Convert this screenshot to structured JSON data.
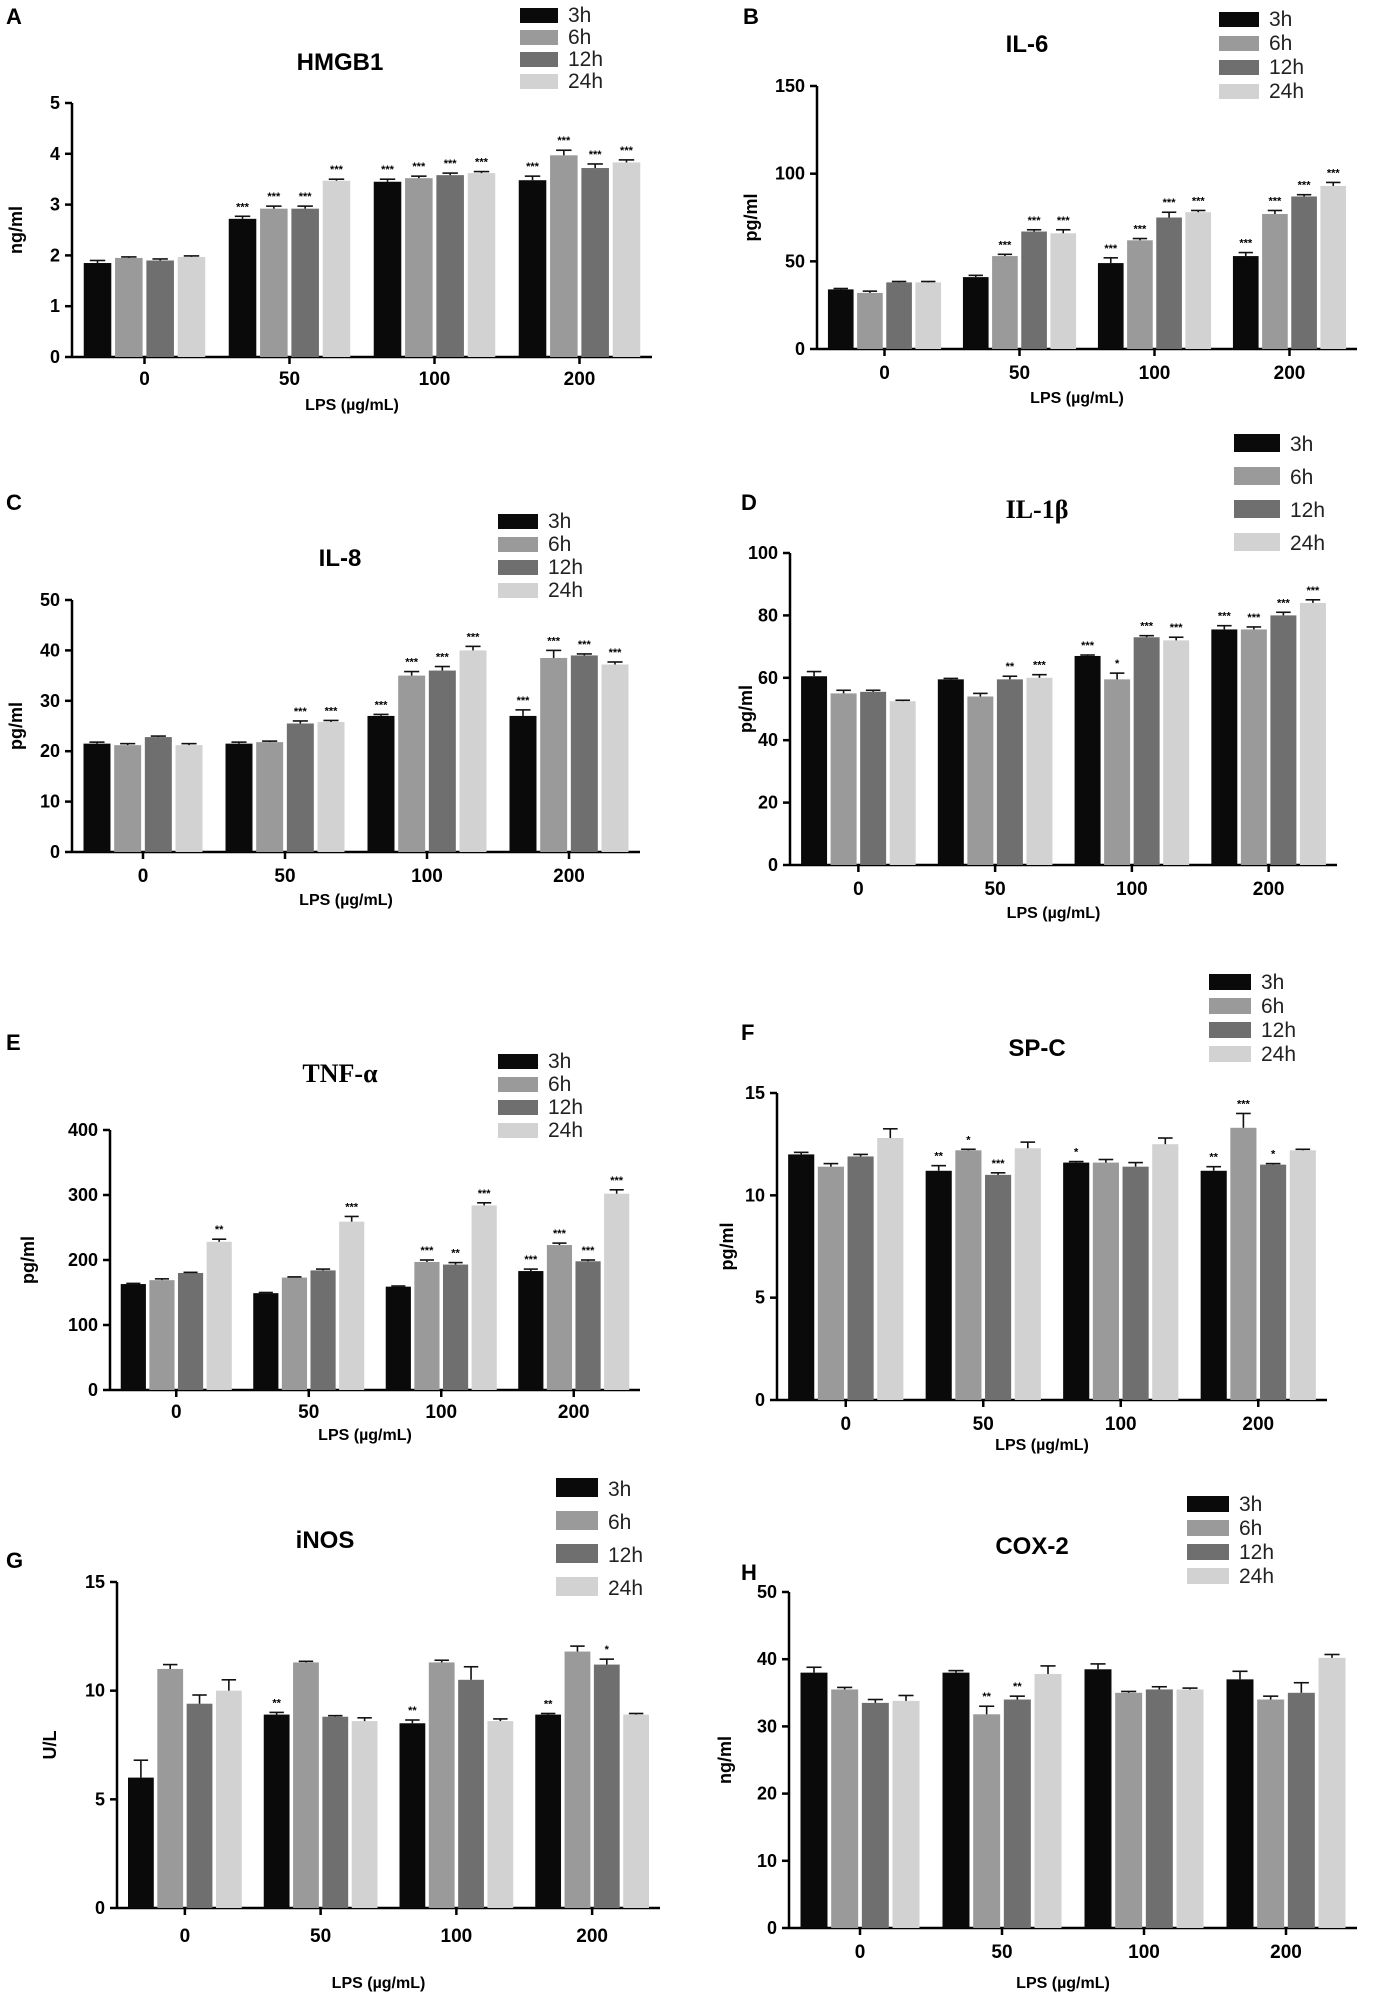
{
  "colors": {
    "3h": "#0a0a0a",
    "6h": "#9a9a9a",
    "12h": "#6f6f6f",
    "24h": "#d2d2d2",
    "axis": "#000000"
  },
  "chart_data": [
    {
      "panel": "A",
      "type": "bar",
      "title": "HMGB1",
      "ylabel": "ng/ml",
      "xlabel": "LPS (µg/mL)",
      "ylim": [
        0,
        5
      ],
      "yticks": [
        0,
        1,
        2,
        3,
        4,
        5
      ],
      "categories": [
        "0",
        "50",
        "100",
        "200"
      ],
      "legend": [
        "3h",
        "6h",
        "12h",
        "24h"
      ],
      "series": [
        {
          "name": "3h",
          "values": [
            1.85,
            2.72,
            3.45,
            3.48
          ],
          "errors": [
            0.05,
            0.05,
            0.05,
            0.08
          ],
          "sig": [
            "",
            "***",
            "***",
            "***"
          ]
        },
        {
          "name": "6h",
          "values": [
            1.95,
            2.92,
            3.52,
            3.97
          ],
          "errors": [
            0.02,
            0.05,
            0.04,
            0.1
          ],
          "sig": [
            "",
            "***",
            "***",
            "***"
          ]
        },
        {
          "name": "12h",
          "values": [
            1.9,
            2.92,
            3.58,
            3.72
          ],
          "errors": [
            0.03,
            0.05,
            0.04,
            0.08
          ],
          "sig": [
            "",
            "***",
            "***",
            "***"
          ]
        },
        {
          "name": "24h",
          "values": [
            1.97,
            3.47,
            3.62,
            3.83
          ],
          "errors": [
            0.02,
            0.03,
            0.03,
            0.05
          ],
          "sig": [
            "",
            "***",
            "***",
            "***"
          ]
        }
      ]
    },
    {
      "panel": "B",
      "type": "bar",
      "title": "IL-6",
      "ylabel": "pg/ml",
      "xlabel": "LPS (µg/mL)",
      "ylim": [
        0,
        150
      ],
      "yticks": [
        0,
        50,
        100,
        150
      ],
      "categories": [
        "0",
        "50",
        "100",
        "200"
      ],
      "legend": [
        "3h",
        "6h",
        "12h",
        "24h"
      ],
      "series": [
        {
          "name": "3h",
          "values": [
            34,
            41,
            49,
            53
          ],
          "errors": [
            0.5,
            1,
            3,
            2
          ],
          "sig": [
            "",
            "",
            "***",
            "***"
          ]
        },
        {
          "name": "6h",
          "values": [
            32,
            53,
            62,
            77
          ],
          "errors": [
            1,
            1,
            1,
            2
          ],
          "sig": [
            "",
            "***",
            "***",
            "***"
          ]
        },
        {
          "name": "12h",
          "values": [
            38,
            67,
            75,
            87
          ],
          "errors": [
            0.5,
            1,
            3,
            1
          ],
          "sig": [
            "",
            "***",
            "***",
            "***"
          ]
        },
        {
          "name": "24h",
          "values": [
            38,
            66,
            78,
            93
          ],
          "errors": [
            0.5,
            2,
            1,
            2
          ],
          "sig": [
            "",
            "***",
            "***",
            "***"
          ]
        }
      ]
    },
    {
      "panel": "C",
      "type": "bar",
      "title": "IL-8",
      "ylabel": "pg/ml",
      "xlabel": "LPS (µg/mL)",
      "ylim": [
        0,
        50
      ],
      "yticks": [
        0,
        10,
        20,
        30,
        40,
        50
      ],
      "categories": [
        "0",
        "50",
        "100",
        "200"
      ],
      "legend": [
        "3h",
        "6h",
        "12h",
        "24h"
      ],
      "series": [
        {
          "name": "3h",
          "values": [
            21.5,
            21.5,
            27,
            27
          ],
          "errors": [
            0.3,
            0.3,
            0.3,
            1.2
          ],
          "sig": [
            "",
            "",
            "***",
            "***"
          ]
        },
        {
          "name": "6h",
          "values": [
            21.2,
            21.8,
            35,
            38.5
          ],
          "errors": [
            0.3,
            0.2,
            0.8,
            1.5
          ],
          "sig": [
            "",
            "",
            "***",
            "***"
          ]
        },
        {
          "name": "12h",
          "values": [
            22.8,
            25.5,
            36,
            39
          ],
          "errors": [
            0.2,
            0.5,
            0.8,
            0.3
          ],
          "sig": [
            "",
            "***",
            "***",
            "***"
          ]
        },
        {
          "name": "24h",
          "values": [
            21.2,
            25.8,
            40,
            37.2
          ],
          "errors": [
            0.3,
            0.3,
            0.8,
            0.5
          ],
          "sig": [
            "",
            "***",
            "***",
            "***"
          ]
        }
      ]
    },
    {
      "panel": "D",
      "type": "bar",
      "title": "IL-1β",
      "ylabel": "pg/ml",
      "xlabel": "LPS (µg/mL)",
      "ylim": [
        0,
        100
      ],
      "yticks": [
        0,
        20,
        40,
        60,
        80,
        100
      ],
      "categories": [
        "0",
        "50",
        "100",
        "200"
      ],
      "legend": [
        "3h",
        "6h",
        "12h",
        "24h"
      ],
      "series": [
        {
          "name": "3h",
          "values": [
            60.5,
            59.5,
            67,
            75.5
          ],
          "errors": [
            1.5,
            0.3,
            0.3,
            1.2
          ],
          "sig": [
            "",
            "",
            "***",
            "***"
          ]
        },
        {
          "name": "6h",
          "values": [
            55,
            54,
            59.5,
            75.5
          ],
          "errors": [
            1,
            1,
            2,
            0.8
          ],
          "sig": [
            "",
            "",
            "*",
            "***"
          ]
        },
        {
          "name": "12h",
          "values": [
            55.5,
            59.5,
            73,
            80
          ],
          "errors": [
            0.5,
            1,
            0.5,
            1
          ],
          "sig": [
            "",
            "**",
            "***",
            "***"
          ]
        },
        {
          "name": "24h",
          "values": [
            52.5,
            60,
            72,
            84
          ],
          "errors": [
            0.3,
            1,
            1,
            1
          ],
          "sig": [
            "",
            "***",
            "***",
            "***"
          ]
        }
      ]
    },
    {
      "panel": "E",
      "type": "bar",
      "title": "TNF-α",
      "ylabel": "pg/ml",
      "xlabel": "LPS (µg/mL)",
      "ylim": [
        0,
        400
      ],
      "yticks": [
        0,
        100,
        200,
        300,
        400
      ],
      "categories": [
        "0",
        "50",
        "100",
        "200"
      ],
      "legend": [
        "3h",
        "6h",
        "12h",
        "24h"
      ],
      "series": [
        {
          "name": "3h",
          "values": [
            163,
            149,
            159,
            183
          ],
          "errors": [
            1,
            1,
            1,
            3
          ],
          "sig": [
            "",
            "",
            "",
            "***"
          ]
        },
        {
          "name": "6h",
          "values": [
            169,
            173,
            197,
            223
          ],
          "errors": [
            2,
            1,
            3,
            3
          ],
          "sig": [
            "",
            "",
            "***",
            "***"
          ]
        },
        {
          "name": "12h",
          "values": [
            180,
            184,
            193,
            198
          ],
          "errors": [
            1,
            2,
            3,
            2
          ],
          "sig": [
            "",
            "",
            "**",
            "***"
          ]
        },
        {
          "name": "24h",
          "values": [
            228,
            259,
            284,
            302
          ],
          "errors": [
            4,
            8,
            4,
            6
          ],
          "sig": [
            "**",
            "***",
            "***",
            "***"
          ]
        }
      ]
    },
    {
      "panel": "F",
      "type": "bar",
      "title": "SP-C",
      "ylabel": "pg/ml",
      "xlabel": "LPS (µg/mL)",
      "ylim": [
        0,
        15
      ],
      "yticks": [
        0,
        5,
        10,
        15
      ],
      "categories": [
        "0",
        "50",
        "100",
        "200"
      ],
      "legend": [
        "3h",
        "6h",
        "12h",
        "24h"
      ],
      "series": [
        {
          "name": "3h",
          "values": [
            12.0,
            11.2,
            11.6,
            11.2
          ],
          "errors": [
            0.1,
            0.25,
            0.05,
            0.2
          ],
          "sig": [
            "",
            "**",
            "*",
            "**"
          ]
        },
        {
          "name": "6h",
          "values": [
            11.4,
            12.2,
            11.6,
            13.3
          ],
          "errors": [
            0.15,
            0.05,
            0.15,
            0.7
          ],
          "sig": [
            "",
            "*",
            "",
            "***"
          ]
        },
        {
          "name": "12h",
          "values": [
            11.9,
            11.0,
            11.4,
            11.5
          ],
          "errors": [
            0.1,
            0.1,
            0.2,
            0.05
          ],
          "sig": [
            "",
            "***",
            "",
            "*"
          ]
        },
        {
          "name": "24h",
          "values": [
            12.8,
            12.3,
            12.5,
            12.2
          ],
          "errors": [
            0.45,
            0.3,
            0.3,
            0.05
          ],
          "sig": [
            "",
            "",
            "",
            ""
          ]
        }
      ]
    },
    {
      "panel": "G",
      "type": "bar",
      "title": "iNOS",
      "ylabel": "U/L",
      "xlabel": "LPS (µg/mL)",
      "ylim": [
        0,
        15
      ],
      "yticks": [
        0,
        5,
        10,
        15
      ],
      "categories": [
        "0",
        "50",
        "100",
        "200"
      ],
      "legend": [
        "3h",
        "6h",
        "12h",
        "24h"
      ],
      "series": [
        {
          "name": "3h",
          "values": [
            6.0,
            8.9,
            8.5,
            8.9
          ],
          "errors": [
            0.8,
            0.1,
            0.15,
            0.05
          ],
          "sig": [
            "",
            "**",
            "**",
            "**"
          ]
        },
        {
          "name": "6h",
          "values": [
            11.0,
            11.3,
            11.3,
            11.8
          ],
          "errors": [
            0.2,
            0.05,
            0.1,
            0.25
          ],
          "sig": [
            "",
            "",
            "",
            ""
          ]
        },
        {
          "name": "12h",
          "values": [
            9.4,
            8.8,
            10.5,
            11.2
          ],
          "errors": [
            0.4,
            0.05,
            0.6,
            0.25
          ],
          "sig": [
            "",
            "",
            "",
            "*"
          ]
        },
        {
          "name": "24h",
          "values": [
            10.0,
            8.6,
            8.6,
            8.9
          ],
          "errors": [
            0.5,
            0.15,
            0.1,
            0.05
          ],
          "sig": [
            "",
            "",
            "",
            ""
          ]
        }
      ]
    },
    {
      "panel": "H",
      "type": "bar",
      "title": "COX-2",
      "ylabel": "ng/ml",
      "xlabel": "LPS (µg/mL)",
      "ylim": [
        0,
        50
      ],
      "yticks": [
        0,
        10,
        20,
        30,
        40,
        50
      ],
      "categories": [
        "0",
        "50",
        "100",
        "200"
      ],
      "legend": [
        "3h",
        "6h",
        "12h",
        "24h"
      ],
      "series": [
        {
          "name": "3h",
          "values": [
            38,
            38,
            38.5,
            37
          ],
          "errors": [
            0.8,
            0.3,
            0.8,
            1.2
          ],
          "sig": [
            "",
            "",
            "",
            ""
          ]
        },
        {
          "name": "6h",
          "values": [
            35.5,
            31.8,
            35,
            34
          ],
          "errors": [
            0.3,
            1.2,
            0.2,
            0.5
          ],
          "sig": [
            "",
            "**",
            "",
            ""
          ]
        },
        {
          "name": "12h",
          "values": [
            33.5,
            34,
            35.5,
            35
          ],
          "errors": [
            0.5,
            0.5,
            0.4,
            1.5
          ],
          "sig": [
            "",
            "**",
            "",
            ""
          ]
        },
        {
          "name": "24h",
          "values": [
            33.8,
            37.8,
            35.5,
            40.2
          ],
          "errors": [
            0.8,
            1.2,
            0.2,
            0.5
          ],
          "sig": [
            "",
            "",
            "",
            ""
          ]
        }
      ]
    }
  ]
}
